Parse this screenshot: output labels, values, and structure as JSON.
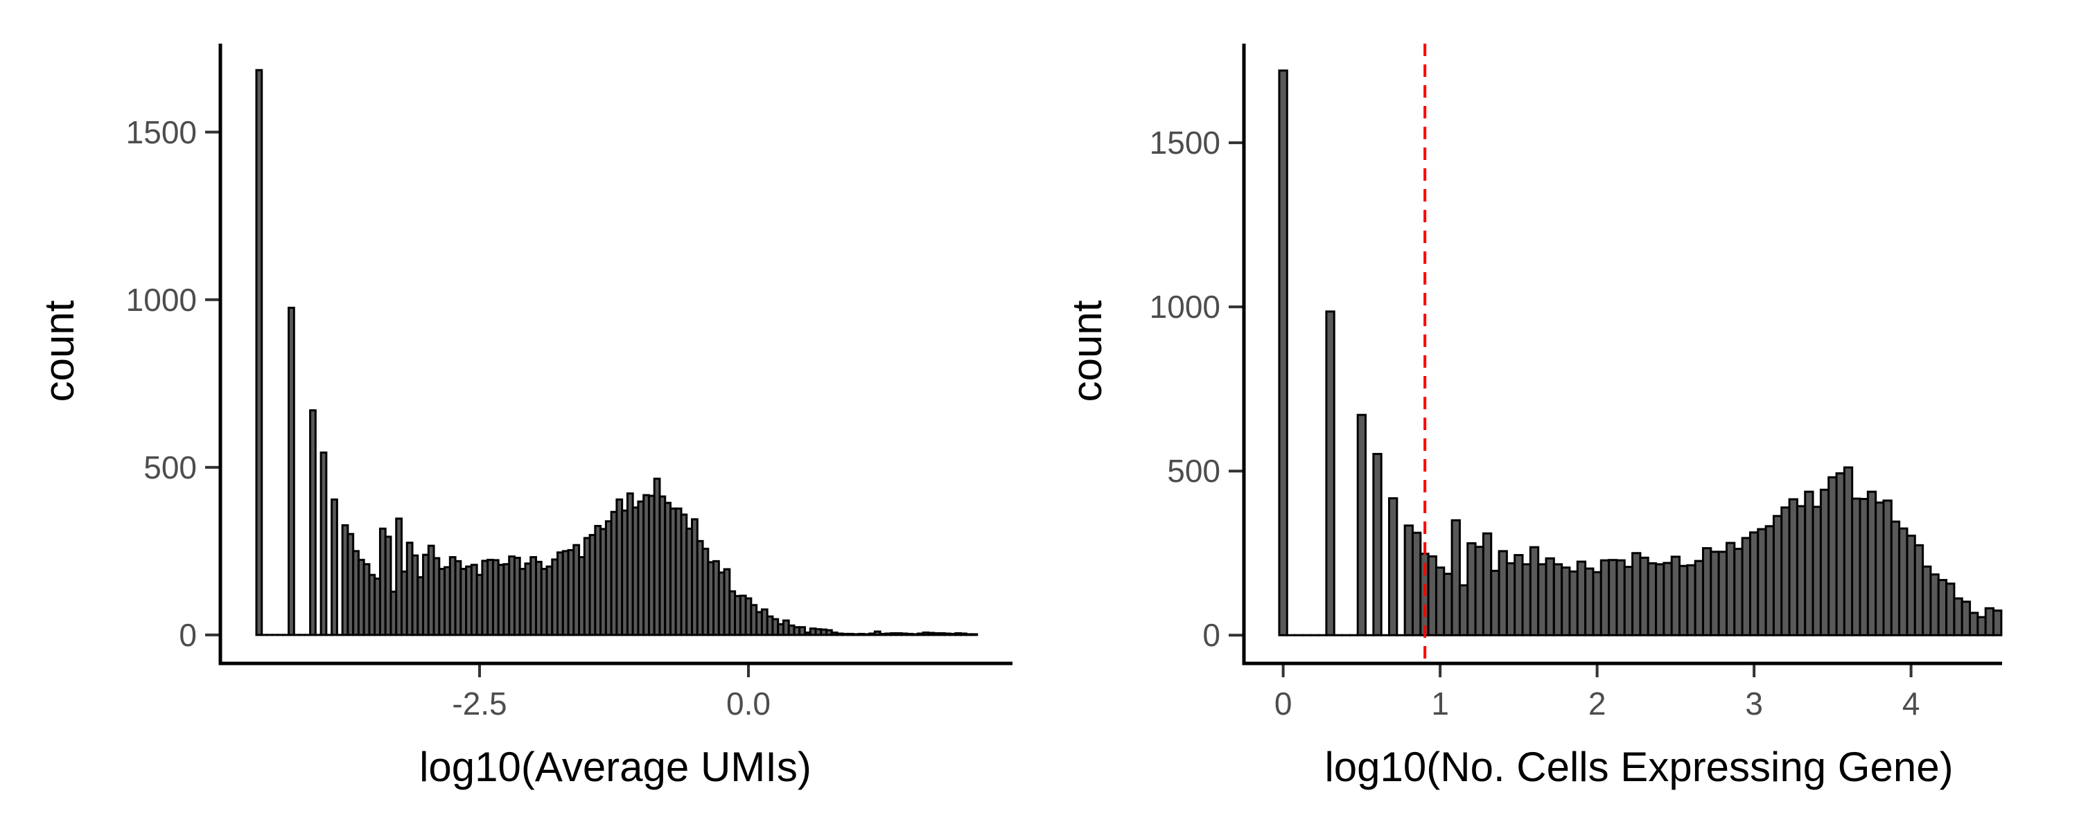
{
  "chart_data": [
    {
      "type": "bar",
      "subtype": "histogram",
      "xlabel": "log10(Average UMIs)",
      "ylabel": "count",
      "xlim": [
        -4.91,
        2.455
      ],
      "ylim": [
        -85,
        1764
      ],
      "grid": false,
      "x_ticks": [
        -2.5,
        0.0
      ],
      "x_tick_labels": [
        "-2.5",
        "0.0"
      ],
      "y_ticks": [
        0,
        500,
        1000,
        1500
      ],
      "y_tick_labels": [
        "0",
        "500",
        "1000",
        "1500"
      ],
      "bin_width": 0.05,
      "first_bin_center": -4.55,
      "fill_color": "#595959",
      "outline_color": "#000000",
      "counts": [
        1685,
        0,
        0,
        0,
        0,
        0,
        976,
        0,
        0,
        0,
        670,
        0,
        544,
        0,
        404,
        0,
        327,
        301,
        250,
        224,
        211,
        179,
        168,
        317,
        293,
        129,
        347,
        189,
        275,
        237,
        172,
        239,
        266,
        229,
        197,
        202,
        232,
        220,
        197,
        204,
        209,
        179,
        221,
        224,
        223,
        209,
        211,
        234,
        230,
        197,
        213,
        232,
        218,
        197,
        204,
        225,
        246,
        250,
        253,
        268,
        232,
        289,
        298,
        325,
        316,
        339,
        367,
        404,
        371,
        422,
        380,
        398,
        417,
        415,
        466,
        413,
        394,
        377,
        377,
        359,
        317,
        345,
        280,
        257,
        217,
        220,
        186,
        196,
        130,
        116,
        117,
        109,
        89,
        68,
        76,
        55,
        47,
        32,
        43,
        28,
        23,
        23,
        7,
        19,
        17,
        16,
        14,
        7,
        4,
        3,
        3,
        2,
        3,
        2,
        4,
        10,
        3,
        4,
        5,
        5,
        4,
        3,
        2,
        4,
        7,
        6,
        5,
        5,
        4,
        3,
        5,
        4,
        2,
        2
      ]
    },
    {
      "type": "bar",
      "subtype": "histogram",
      "xlabel": "log10(No. Cells Expressing Gene)",
      "ylabel": "count",
      "xlim": [
        -0.25,
        4.58
      ],
      "ylim": [
        -86,
        1802
      ],
      "grid": false,
      "x_ticks": [
        0,
        1,
        2,
        3,
        4
      ],
      "x_tick_labels": [
        "0",
        "1",
        "2",
        "3",
        "4"
      ],
      "y_ticks": [
        0,
        500,
        1000,
        1500
      ],
      "y_tick_labels": [
        "0",
        "500",
        "1000",
        "1500"
      ],
      "bin_width": 0.05,
      "first_bin_center": 0,
      "fill_color": "#595959",
      "outline_color": "#000000",
      "threshold_line": {
        "x": 0.903,
        "color": "#ff0000",
        "style": "dashed"
      },
      "counts": [
        1720,
        0,
        0,
        0,
        0,
        0,
        986,
        0,
        0,
        0,
        671,
        0,
        552,
        0,
        417,
        0,
        334,
        312,
        248,
        240,
        206,
        187,
        350,
        152,
        280,
        269,
        310,
        196,
        256,
        219,
        244,
        216,
        268,
        216,
        234,
        216,
        206,
        194,
        224,
        203,
        192,
        228,
        229,
        228,
        208,
        250,
        236,
        219,
        216,
        220,
        239,
        211,
        213,
        226,
        265,
        254,
        254,
        281,
        263,
        296,
        313,
        323,
        332,
        363,
        389,
        414,
        393,
        437,
        391,
        443,
        481,
        493,
        511,
        416,
        415,
        437,
        404,
        410,
        346,
        325,
        303,
        274,
        209,
        185,
        168,
        157,
        112,
        102,
        68,
        55,
        82,
        75
      ]
    }
  ]
}
